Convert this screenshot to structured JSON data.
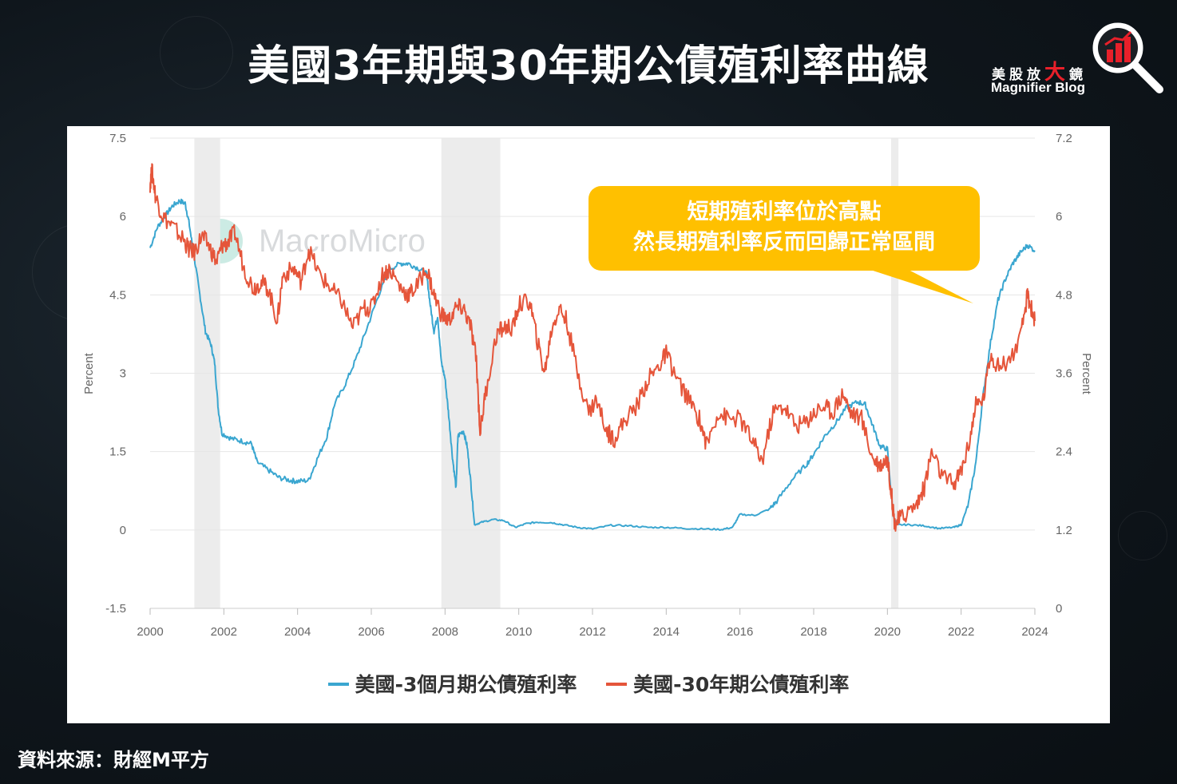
{
  "title": "美國3年期與30年期公債殖利率曲線",
  "logo": {
    "cn_part1": "美股放",
    "cn_accent": "大",
    "cn_part2": "鏡",
    "en": "Magnifier Blog"
  },
  "watermark": "MacroMicro",
  "callout": {
    "line1": "短期殖利率位於高點",
    "line2": "然長期殖利率反而回歸正常區間"
  },
  "source": "資料來源：財經M平方",
  "colors": {
    "series_3m": "#3aa6d0",
    "series_30y": "#e5553a",
    "recession": "#ececec",
    "callout": "#ffc000"
  },
  "chart_data": {
    "type": "line",
    "x_axis": {
      "min": 2000,
      "max": 2024,
      "ticks": [
        "2000",
        "2002",
        "2004",
        "2006",
        "2008",
        "2010",
        "2012",
        "2014",
        "2016",
        "2018",
        "2020",
        "2022",
        "2024"
      ]
    },
    "y_left": {
      "label": "Percent",
      "min": -1.5,
      "max": 7.5,
      "ticks": [
        "-1.5",
        "0",
        "1.5",
        "3",
        "4.5",
        "6",
        "7.5"
      ]
    },
    "y_right": {
      "label": "Percent",
      "min": 0,
      "max": 7.2,
      "ticks": [
        "0",
        "1.2",
        "2.4",
        "3.6",
        "4.8",
        "6",
        "7.2"
      ]
    },
    "recessions": [
      [
        2001.2,
        2001.9
      ],
      [
        2007.9,
        2009.5
      ],
      [
        2020.1,
        2020.3
      ]
    ],
    "grid": true,
    "legend_position": "bottom",
    "series": [
      {
        "name": "美國-3個月期公債殖利率",
        "axis": "left",
        "points": [
          [
            2000.0,
            5.4
          ],
          [
            2000.2,
            5.8
          ],
          [
            2000.4,
            6.0
          ],
          [
            2000.6,
            6.2
          ],
          [
            2000.8,
            6.3
          ],
          [
            2000.95,
            6.25
          ],
          [
            2001.05,
            5.9
          ],
          [
            2001.2,
            5.2
          ],
          [
            2001.35,
            4.5
          ],
          [
            2001.5,
            3.8
          ],
          [
            2001.65,
            3.55
          ],
          [
            2001.75,
            3.2
          ],
          [
            2001.85,
            2.3
          ],
          [
            2001.95,
            1.85
          ],
          [
            2002.2,
            1.75
          ],
          [
            2002.5,
            1.7
          ],
          [
            2002.75,
            1.65
          ],
          [
            2002.9,
            1.3
          ],
          [
            2003.2,
            1.15
          ],
          [
            2003.5,
            1.0
          ],
          [
            2003.8,
            0.95
          ],
          [
            2004.0,
            0.93
          ],
          [
            2004.3,
            0.95
          ],
          [
            2004.5,
            1.3
          ],
          [
            2004.8,
            1.8
          ],
          [
            2005.0,
            2.4
          ],
          [
            2005.3,
            2.8
          ],
          [
            2005.6,
            3.3
          ],
          [
            2005.9,
            3.9
          ],
          [
            2006.2,
            4.5
          ],
          [
            2006.5,
            5.0
          ],
          [
            2006.8,
            5.1
          ],
          [
            2007.0,
            5.1
          ],
          [
            2007.3,
            5.0
          ],
          [
            2007.5,
            4.9
          ],
          [
            2007.6,
            4.3
          ],
          [
            2007.7,
            3.8
          ],
          [
            2007.8,
            4.1
          ],
          [
            2007.9,
            3.2
          ],
          [
            2008.0,
            2.9
          ],
          [
            2008.1,
            2.2
          ],
          [
            2008.2,
            1.4
          ],
          [
            2008.3,
            0.8
          ],
          [
            2008.35,
            1.8
          ],
          [
            2008.5,
            1.9
          ],
          [
            2008.6,
            1.6
          ],
          [
            2008.7,
            0.9
          ],
          [
            2008.8,
            0.1
          ],
          [
            2009.0,
            0.15
          ],
          [
            2009.3,
            0.2
          ],
          [
            2009.6,
            0.18
          ],
          [
            2009.9,
            0.05
          ],
          [
            2010.2,
            0.12
          ],
          [
            2010.5,
            0.15
          ],
          [
            2010.9,
            0.14
          ],
          [
            2011.2,
            0.1
          ],
          [
            2011.6,
            0.05
          ],
          [
            2012.0,
            0.02
          ],
          [
            2012.5,
            0.09
          ],
          [
            2013.0,
            0.08
          ],
          [
            2013.5,
            0.05
          ],
          [
            2014.0,
            0.05
          ],
          [
            2014.5,
            0.03
          ],
          [
            2015.0,
            0.02
          ],
          [
            2015.5,
            0.01
          ],
          [
            2015.8,
            0.05
          ],
          [
            2016.0,
            0.3
          ],
          [
            2016.4,
            0.28
          ],
          [
            2016.8,
            0.4
          ],
          [
            2017.0,
            0.55
          ],
          [
            2017.4,
            0.95
          ],
          [
            2017.8,
            1.25
          ],
          [
            2018.0,
            1.45
          ],
          [
            2018.3,
            1.8
          ],
          [
            2018.6,
            2.05
          ],
          [
            2018.9,
            2.35
          ],
          [
            2019.2,
            2.45
          ],
          [
            2019.4,
            2.4
          ],
          [
            2019.6,
            2.0
          ],
          [
            2019.8,
            1.6
          ],
          [
            2020.0,
            1.55
          ],
          [
            2020.15,
            0.3
          ],
          [
            2020.25,
            0.1
          ],
          [
            2020.6,
            0.1
          ],
          [
            2021.0,
            0.08
          ],
          [
            2021.4,
            0.03
          ],
          [
            2021.8,
            0.05
          ],
          [
            2022.0,
            0.1
          ],
          [
            2022.2,
            0.5
          ],
          [
            2022.4,
            1.3
          ],
          [
            2022.6,
            2.6
          ],
          [
            2022.8,
            3.6
          ],
          [
            2023.0,
            4.4
          ],
          [
            2023.2,
            4.8
          ],
          [
            2023.4,
            5.1
          ],
          [
            2023.6,
            5.3
          ],
          [
            2023.8,
            5.45
          ],
          [
            2024.0,
            5.35
          ]
        ]
      },
      {
        "name": "美國-30年期公債殖利率",
        "axis": "right",
        "points": [
          [
            2000.0,
            6.5
          ],
          [
            2000.05,
            6.7
          ],
          [
            2000.15,
            6.3
          ],
          [
            2000.35,
            6.0
          ],
          [
            2000.6,
            5.85
          ],
          [
            2000.9,
            5.65
          ],
          [
            2001.05,
            5.5
          ],
          [
            2001.2,
            5.45
          ],
          [
            2001.4,
            5.7
          ],
          [
            2001.6,
            5.55
          ],
          [
            2001.8,
            5.3
          ],
          [
            2001.95,
            5.55
          ],
          [
            2002.1,
            5.6
          ],
          [
            2002.3,
            5.75
          ],
          [
            2002.55,
            5.2
          ],
          [
            2002.8,
            4.9
          ],
          [
            2003.0,
            5.0
          ],
          [
            2003.2,
            4.9
          ],
          [
            2003.45,
            4.4
          ],
          [
            2003.6,
            5.1
          ],
          [
            2003.9,
            5.2
          ],
          [
            2004.1,
            5.0
          ],
          [
            2004.3,
            5.5
          ],
          [
            2004.6,
            5.1
          ],
          [
            2004.9,
            4.9
          ],
          [
            2005.2,
            4.7
          ],
          [
            2005.5,
            4.3
          ],
          [
            2005.8,
            4.6
          ],
          [
            2006.0,
            4.6
          ],
          [
            2006.3,
            5.1
          ],
          [
            2006.5,
            5.2
          ],
          [
            2006.8,
            4.9
          ],
          [
            2007.0,
            4.8
          ],
          [
            2007.2,
            4.9
          ],
          [
            2007.5,
            5.2
          ],
          [
            2007.7,
            4.8
          ],
          [
            2007.9,
            4.5
          ],
          [
            2008.1,
            4.4
          ],
          [
            2008.3,
            4.6
          ],
          [
            2008.5,
            4.6
          ],
          [
            2008.7,
            4.3
          ],
          [
            2008.85,
            3.8
          ],
          [
            2008.95,
            2.7
          ],
          [
            2009.1,
            3.3
          ],
          [
            2009.4,
            4.2
          ],
          [
            2009.6,
            4.3
          ],
          [
            2009.85,
            4.3
          ],
          [
            2010.0,
            4.65
          ],
          [
            2010.3,
            4.7
          ],
          [
            2010.5,
            4.1
          ],
          [
            2010.7,
            3.6
          ],
          [
            2010.9,
            4.3
          ],
          [
            2011.1,
            4.6
          ],
          [
            2011.3,
            4.4
          ],
          [
            2011.6,
            3.6
          ],
          [
            2011.9,
            3.0
          ],
          [
            2012.1,
            3.2
          ],
          [
            2012.4,
            2.7
          ],
          [
            2012.6,
            2.6
          ],
          [
            2012.9,
            2.9
          ],
          [
            2013.2,
            3.1
          ],
          [
            2013.5,
            3.5
          ],
          [
            2013.8,
            3.7
          ],
          [
            2014.0,
            3.9
          ],
          [
            2014.3,
            3.5
          ],
          [
            2014.6,
            3.2
          ],
          [
            2014.9,
            2.9
          ],
          [
            2015.1,
            2.5
          ],
          [
            2015.4,
            3.0
          ],
          [
            2015.7,
            2.9
          ],
          [
            2016.0,
            2.9
          ],
          [
            2016.3,
            2.6
          ],
          [
            2016.6,
            2.25
          ],
          [
            2016.9,
            3.0
          ],
          [
            2017.2,
            3.1
          ],
          [
            2017.5,
            2.8
          ],
          [
            2017.8,
            2.85
          ],
          [
            2018.0,
            3.0
          ],
          [
            2018.3,
            3.1
          ],
          [
            2018.5,
            3.0
          ],
          [
            2018.8,
            3.3
          ],
          [
            2019.0,
            3.0
          ],
          [
            2019.3,
            2.9
          ],
          [
            2019.6,
            2.3
          ],
          [
            2019.8,
            2.2
          ],
          [
            2020.0,
            2.3
          ],
          [
            2020.1,
            1.8
          ],
          [
            2020.2,
            1.3
          ],
          [
            2020.3,
            1.35
          ],
          [
            2020.5,
            1.45
          ],
          [
            2020.8,
            1.6
          ],
          [
            2021.0,
            1.85
          ],
          [
            2021.2,
            2.4
          ],
          [
            2021.5,
            2.0
          ],
          [
            2021.8,
            1.9
          ],
          [
            2022.0,
            2.1
          ],
          [
            2022.2,
            2.5
          ],
          [
            2022.4,
            3.1
          ],
          [
            2022.6,
            3.2
          ],
          [
            2022.8,
            3.9
          ],
          [
            2023.0,
            3.7
          ],
          [
            2023.3,
            3.8
          ],
          [
            2023.6,
            4.1
          ],
          [
            2023.8,
            4.8
          ],
          [
            2023.9,
            4.6
          ],
          [
            2024.0,
            4.4
          ]
        ]
      }
    ]
  }
}
